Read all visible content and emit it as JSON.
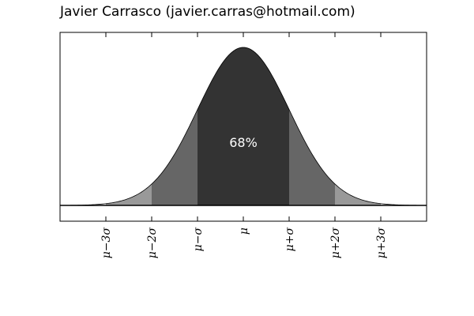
{
  "title": "Javier Carrasco (javier.carras@hotmail.com)",
  "chart_data": {
    "type": "area",
    "title": "Javier Carrasco (javier.carras@hotmail.com)",
    "xlabel": "",
    "ylabel": "",
    "xlim": [
      -4,
      4
    ],
    "ylim": [
      -0.0344,
      0.3989
    ],
    "grid": false,
    "distribution": "normal",
    "peak_density": 0.3989,
    "curve_color": "#000000",
    "bands": [
      {
        "from": -3,
        "to": 3,
        "color": "#999999"
      },
      {
        "from": -2,
        "to": 2,
        "color": "#666666"
      },
      {
        "from": -1,
        "to": 1,
        "color": "#333333"
      }
    ],
    "xticks": [
      {
        "value": -3,
        "label": "μ−3σ"
      },
      {
        "value": -2,
        "label": "μ−2σ"
      },
      {
        "value": -1,
        "label": "μ−σ"
      },
      {
        "value": 0,
        "label": "μ"
      },
      {
        "value": 1,
        "label": "μ+σ"
      },
      {
        "value": 2,
        "label": "μ+2σ"
      },
      {
        "value": 3,
        "label": "μ+3σ"
      }
    ],
    "annotations": [
      {
        "text": "68%",
        "x": 0,
        "y": 0.16,
        "color": "#ffffff"
      }
    ]
  }
}
